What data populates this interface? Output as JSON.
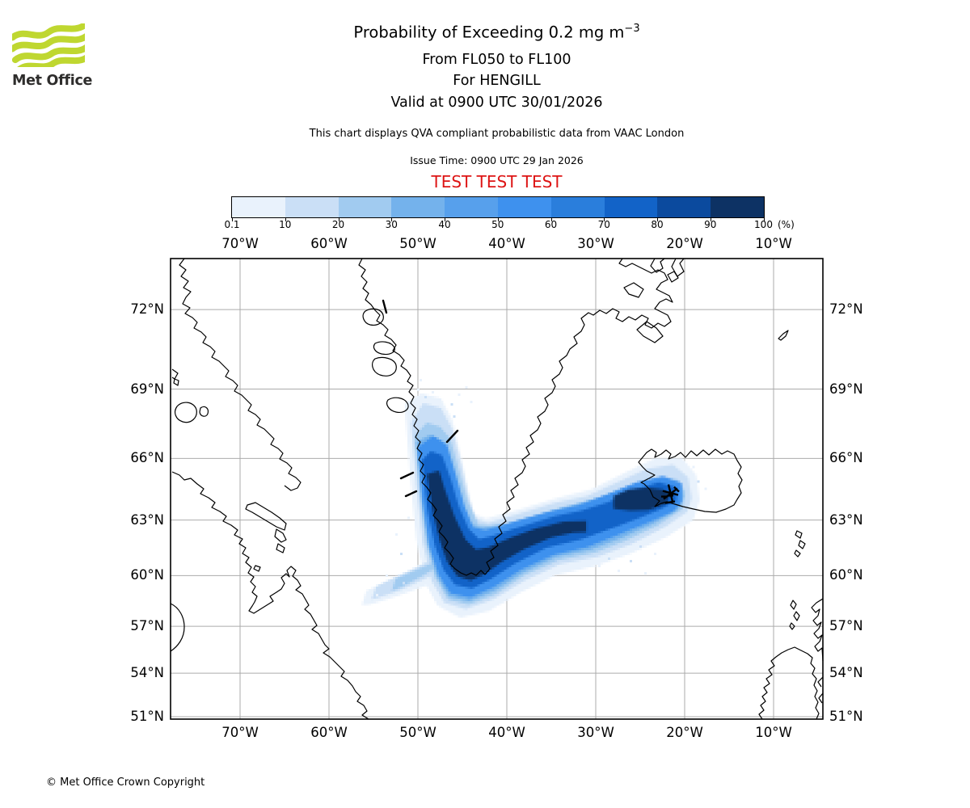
{
  "header": {
    "logo_text": "Met Office",
    "title_main": "Probability of Exceeding 0.2 mg m",
    "title_sup": "−3",
    "subtitle1": "From FL050 to FL100",
    "subtitle2": "For HENGILL",
    "subtitle3": "Valid at 0900 UTC 30/01/2026",
    "note": "This chart displays QVA compliant probabilistic data from VAAC London",
    "issue_time": "Issue Time: 0900 UTC 29 Jan 2026",
    "test_banner": "TEST TEST TEST",
    "test_color": "#dd1414"
  },
  "footer": {
    "copyright": "© Met Office Crown Copyright"
  },
  "colorbar": {
    "tick_labels": [
      "0.1",
      "10",
      "20",
      "30",
      "40",
      "50",
      "60",
      "70",
      "80",
      "90",
      "100"
    ],
    "unit_label": "(%)",
    "colors": [
      "#e9f2fc",
      "#cadff6",
      "#a1cbf0",
      "#74b2ec",
      "#57a0ec",
      "#3e91ee",
      "#2a7edc",
      "#1263c8",
      "#0b4a9e",
      "#0d3264"
    ]
  },
  "map": {
    "lon_ticks": [
      {
        "deg": -70,
        "label": "70°W"
      },
      {
        "deg": -60,
        "label": "60°W"
      },
      {
        "deg": -50,
        "label": "50°W"
      },
      {
        "deg": -40,
        "label": "40°W"
      },
      {
        "deg": -30,
        "label": "30°W"
      },
      {
        "deg": -20,
        "label": "20°W"
      },
      {
        "deg": -10,
        "label": "10°W"
      }
    ],
    "lat_ticks": [
      {
        "deg": 72,
        "label": "72°N"
      },
      {
        "deg": 69,
        "label": "69°N"
      },
      {
        "deg": 66,
        "label": "66°N"
      },
      {
        "deg": 63,
        "label": "63°N"
      },
      {
        "deg": 60,
        "label": "60°N"
      },
      {
        "deg": 57,
        "label": "57°N"
      },
      {
        "deg": 54,
        "label": "54°N"
      },
      {
        "deg": 51,
        "label": "51°N"
      }
    ]
  },
  "chart_data": {
    "type": "heatmap",
    "subtype": "geographic-probability-plume",
    "projection": "mercator",
    "extent": {
      "lon_min": -77.8,
      "lon_max": -4.5,
      "lat_min": 50.9,
      "lat_max": 73.75
    },
    "grid_on": true,
    "units": "%",
    "levels_percent": [
      0.1,
      10,
      20,
      30,
      40,
      50,
      60,
      70,
      80,
      90,
      100
    ],
    "volcano": {
      "name": "HENGILL",
      "lon": -21.55,
      "lat": 64.3
    },
    "plume_bands": [
      {
        "name": "p5",
        "color": 0,
        "pts": [
          [
            -51.5,
            68.4
          ],
          [
            -50.9,
            65.2
          ],
          [
            -50.2,
            62.0
          ],
          [
            -49.2,
            59.6
          ],
          [
            -47.8,
            58.2
          ],
          [
            -45.2,
            57.5
          ],
          [
            -42.0,
            57.9
          ],
          [
            -38.5,
            59.0
          ],
          [
            -34.5,
            60.0
          ],
          [
            -30.0,
            60.5
          ],
          [
            -26.0,
            61.2
          ],
          [
            -22.0,
            62.1
          ],
          [
            -19.0,
            63.0
          ],
          [
            -18.3,
            64.0
          ],
          [
            -18.7,
            65.2
          ],
          [
            -20.3,
            66.0
          ],
          [
            -23.3,
            66.0
          ],
          [
            -26.8,
            65.3
          ],
          [
            -30.5,
            64.5
          ],
          [
            -34.3,
            64.1
          ],
          [
            -38.8,
            63.5
          ],
          [
            -42.3,
            63.05
          ],
          [
            -43.7,
            63.3
          ],
          [
            -44.3,
            64.4
          ],
          [
            -45.1,
            66.0
          ],
          [
            -46.1,
            67.7
          ],
          [
            -47.4,
            68.6
          ],
          [
            -49.6,
            68.8
          ]
        ]
      },
      {
        "name": "p5-fan",
        "color": 0,
        "pts": [
          [
            -45.8,
            60.2
          ],
          [
            -49.0,
            59.4
          ],
          [
            -52.4,
            58.8
          ],
          [
            -55.4,
            58.3
          ],
          [
            -56.3,
            58.25
          ],
          [
            -55.8,
            59.1
          ],
          [
            -53.4,
            59.7
          ],
          [
            -50.8,
            60.3
          ],
          [
            -48.2,
            61.0
          ],
          [
            -46.2,
            61.7
          ],
          [
            -45.4,
            61.9
          ]
        ]
      },
      {
        "name": "p15",
        "color": 1,
        "pts": [
          [
            -50.8,
            67.6
          ],
          [
            -50.2,
            64.7
          ],
          [
            -49.5,
            61.8
          ],
          [
            -48.5,
            59.7
          ],
          [
            -47.0,
            58.4
          ],
          [
            -44.6,
            58.0
          ],
          [
            -41.5,
            58.6
          ],
          [
            -38.0,
            59.7
          ],
          [
            -34.0,
            60.6
          ],
          [
            -29.8,
            61.0
          ],
          [
            -26.0,
            61.7
          ],
          [
            -22.3,
            62.6
          ],
          [
            -19.7,
            63.4
          ],
          [
            -19.2,
            64.1
          ],
          [
            -19.6,
            65.1
          ],
          [
            -21.3,
            65.7
          ],
          [
            -24.3,
            65.5
          ],
          [
            -27.4,
            64.9
          ],
          [
            -31.0,
            64.2
          ],
          [
            -34.6,
            63.85
          ],
          [
            -38.6,
            63.3
          ],
          [
            -42.1,
            62.85
          ],
          [
            -43.5,
            63.05
          ],
          [
            -44.25,
            64.1
          ],
          [
            -45.1,
            65.7
          ],
          [
            -46.1,
            67.3
          ],
          [
            -47.4,
            68.2
          ],
          [
            -49.4,
            68.4
          ]
        ]
      },
      {
        "name": "p15-fan",
        "color": 1,
        "pts": [
          [
            -46.3,
            60.5
          ],
          [
            -49.2,
            59.8
          ],
          [
            -52.0,
            59.15
          ],
          [
            -54.4,
            58.7
          ],
          [
            -55.2,
            58.6
          ],
          [
            -54.7,
            59.35
          ],
          [
            -52.6,
            59.85
          ],
          [
            -50.2,
            60.4
          ],
          [
            -48.0,
            61.0
          ],
          [
            -46.5,
            61.5
          ]
        ]
      },
      {
        "name": "p30",
        "color": 2,
        "pts": [
          [
            -50.4,
            67.0
          ],
          [
            -49.85,
            64.3
          ],
          [
            -49.1,
            61.7
          ],
          [
            -48.1,
            59.85
          ],
          [
            -46.6,
            58.6
          ],
          [
            -44.3,
            58.3
          ],
          [
            -41.3,
            58.9
          ],
          [
            -38.0,
            60.0
          ],
          [
            -34.1,
            60.85
          ],
          [
            -30.1,
            61.25
          ],
          [
            -26.6,
            61.9
          ],
          [
            -23.1,
            62.7
          ],
          [
            -20.2,
            63.55
          ],
          [
            -19.9,
            64.4
          ],
          [
            -20.9,
            65.0
          ],
          [
            -23.6,
            65.0
          ],
          [
            -26.6,
            64.6
          ],
          [
            -30.1,
            64.0
          ],
          [
            -33.7,
            63.65
          ],
          [
            -37.4,
            63.1
          ],
          [
            -40.9,
            62.65
          ],
          [
            -43.15,
            62.75
          ],
          [
            -44.35,
            63.9
          ],
          [
            -45.35,
            65.4
          ],
          [
            -46.35,
            66.9
          ],
          [
            -47.5,
            67.4
          ],
          [
            -49.0,
            67.6
          ]
        ]
      },
      {
        "name": "p30-fan",
        "color": 2,
        "pts": [
          [
            -47.3,
            60.6
          ],
          [
            -49.6,
            59.95
          ],
          [
            -51.9,
            59.3
          ],
          [
            -52.95,
            59.1
          ],
          [
            -52.5,
            59.8
          ],
          [
            -50.6,
            60.2
          ],
          [
            -48.6,
            60.65
          ],
          [
            -47.2,
            61.0
          ]
        ]
      },
      {
        "name": "p40",
        "color": 3,
        "pts": [
          [
            -50.2,
            66.75
          ],
          [
            -49.65,
            64.15
          ],
          [
            -48.9,
            61.68
          ],
          [
            -47.9,
            59.95
          ],
          [
            -46.45,
            58.8
          ],
          [
            -44.2,
            58.5
          ],
          [
            -41.4,
            59.1
          ],
          [
            -38.2,
            60.15
          ],
          [
            -34.45,
            61.0
          ],
          [
            -30.55,
            61.4
          ],
          [
            -27.0,
            62.05
          ],
          [
            -23.65,
            62.78
          ],
          [
            -20.75,
            63.48
          ],
          [
            -20.1,
            64.15
          ],
          [
            -20.6,
            64.9
          ],
          [
            -23.0,
            65.08
          ],
          [
            -26.0,
            64.73
          ],
          [
            -29.3,
            64.15
          ],
          [
            -32.8,
            63.7
          ],
          [
            -36.4,
            63.25
          ],
          [
            -39.9,
            62.8
          ],
          [
            -42.75,
            62.6
          ],
          [
            -44.05,
            62.78
          ],
          [
            -45.05,
            63.8
          ],
          [
            -46.0,
            65.3
          ],
          [
            -47.0,
            66.75
          ],
          [
            -48.65,
            67.05
          ]
        ]
      },
      {
        "name": "p50",
        "color": 5,
        "pts": [
          [
            -50.05,
            66.5
          ],
          [
            -49.5,
            64.0
          ],
          [
            -48.75,
            61.65
          ],
          [
            -47.7,
            60.05
          ],
          [
            -46.3,
            58.95
          ],
          [
            -44.1,
            58.7
          ],
          [
            -41.5,
            59.3
          ],
          [
            -38.4,
            60.3
          ],
          [
            -34.8,
            61.1
          ],
          [
            -31.0,
            61.55
          ],
          [
            -27.4,
            62.2
          ],
          [
            -24.2,
            62.85
          ],
          [
            -21.3,
            63.4
          ],
          [
            -20.3,
            63.9
          ],
          [
            -20.3,
            64.8
          ],
          [
            -22.4,
            65.15
          ],
          [
            -25.4,
            64.85
          ],
          [
            -28.5,
            64.3
          ],
          [
            -31.9,
            63.75
          ],
          [
            -35.4,
            63.4
          ],
          [
            -38.9,
            62.95
          ],
          [
            -42.4,
            62.45
          ],
          [
            -43.75,
            62.6
          ],
          [
            -44.75,
            63.7
          ],
          [
            -45.7,
            65.2
          ],
          [
            -46.7,
            66.6
          ],
          [
            -48.3,
            67.0
          ]
        ]
      },
      {
        "name": "p70",
        "color": 7,
        "pts": [
          [
            -49.55,
            65.9
          ],
          [
            -48.95,
            63.5
          ],
          [
            -48.1,
            61.6
          ],
          [
            -47.1,
            60.3
          ],
          [
            -45.8,
            59.45
          ],
          [
            -43.9,
            59.25
          ],
          [
            -41.85,
            59.75
          ],
          [
            -39.1,
            60.65
          ],
          [
            -35.6,
            61.5
          ],
          [
            -31.6,
            61.95
          ],
          [
            -28.1,
            62.55
          ],
          [
            -25.1,
            63.1
          ],
          [
            -22.6,
            63.55
          ],
          [
            -20.9,
            63.95
          ],
          [
            -20.9,
            64.6
          ],
          [
            -22.9,
            64.85
          ],
          [
            -25.6,
            64.5
          ],
          [
            -28.6,
            63.9
          ],
          [
            -31.6,
            63.45
          ],
          [
            -34.6,
            63.2
          ],
          [
            -38.1,
            62.7
          ],
          [
            -41.6,
            62.15
          ],
          [
            -43.1,
            61.95
          ],
          [
            -44.25,
            62.5
          ],
          [
            -45.35,
            63.65
          ],
          [
            -46.35,
            65.1
          ],
          [
            -47.25,
            66.1
          ],
          [
            -48.55,
            66.3
          ]
        ]
      },
      {
        "name": "p90",
        "color": 9,
        "pts": [
          [
            -49.0,
            65.25
          ],
          [
            -48.35,
            63.45
          ],
          [
            -47.55,
            61.85
          ],
          [
            -46.65,
            60.7
          ],
          [
            -45.55,
            59.95
          ],
          [
            -44.05,
            59.7
          ],
          [
            -42.55,
            60.05
          ],
          [
            -40.55,
            60.75
          ],
          [
            -38.05,
            61.45
          ],
          [
            -35.05,
            62.05
          ],
          [
            -32.55,
            62.3
          ],
          [
            -31.05,
            62.35
          ],
          [
            -31.05,
            62.95
          ],
          [
            -33.55,
            62.9
          ],
          [
            -36.55,
            62.55
          ],
          [
            -39.55,
            62.05
          ],
          [
            -42.05,
            61.55
          ],
          [
            -43.45,
            61.4
          ],
          [
            -44.65,
            61.95
          ],
          [
            -45.85,
            63.15
          ],
          [
            -46.85,
            64.4
          ],
          [
            -47.65,
            65.4
          ]
        ]
      },
      {
        "name": "p90-iceland",
        "color": 9,
        "pts": [
          [
            -28.0,
            63.55
          ],
          [
            -28.0,
            64.2
          ],
          [
            -26.3,
            64.5
          ],
          [
            -24.3,
            64.6
          ],
          [
            -22.4,
            64.5
          ],
          [
            -21.6,
            64.25
          ],
          [
            -22.1,
            63.8
          ],
          [
            -24.1,
            63.5
          ],
          [
            -26.1,
            63.45
          ]
        ]
      }
    ],
    "speckles": [
      [
        -27.6,
        60.3,
        0
      ],
      [
        -26.1,
        60.8,
        1
      ],
      [
        -24.6,
        60.2,
        0
      ],
      [
        -28.6,
        61.0,
        1
      ],
      [
        -23.6,
        61.3,
        0
      ],
      [
        -25.1,
        61.6,
        1
      ],
      [
        -29.6,
        60.6,
        0
      ],
      [
        -52.6,
        62.3,
        0
      ],
      [
        -53.6,
        60.1,
        0
      ],
      [
        -54.6,
        58.9,
        0
      ],
      [
        -52.1,
        61.2,
        1
      ],
      [
        -51.1,
        63.2,
        0
      ],
      [
        -50.6,
        64.6,
        0
      ],
      [
        -51.6,
        59.6,
        1
      ],
      [
        -50.1,
        69.0,
        0
      ],
      [
        -49.4,
        68.7,
        1
      ],
      [
        -49.9,
        69.35,
        0
      ],
      [
        -48.6,
        68.9,
        0
      ],
      [
        -46.4,
        68.4,
        1
      ],
      [
        -45.4,
        68.8,
        0
      ],
      [
        -44.7,
        69.15,
        0
      ],
      [
        -45.9,
        67.9,
        1
      ],
      [
        -44.1,
        68.5,
        0
      ],
      [
        -19.2,
        65.6,
        0
      ],
      [
        -18.6,
        65.0,
        1
      ],
      [
        -17.9,
        64.6,
        0
      ]
    ]
  }
}
